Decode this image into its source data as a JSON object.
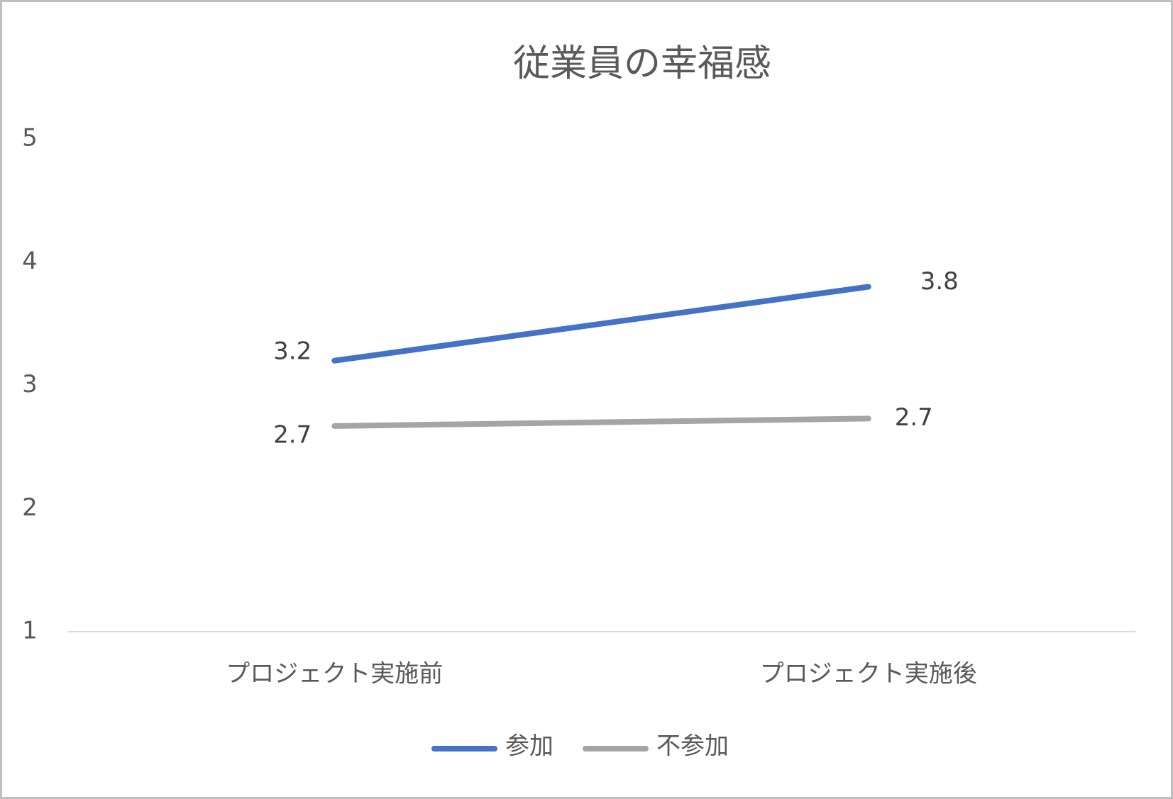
{
  "chart_data": {
    "type": "line",
    "title": "従業員の幸福感",
    "categories": [
      "プロジェクト実施前",
      "プロジェクト実施後"
    ],
    "series": [
      {
        "name": "参加",
        "color": "#4472c4",
        "values": [
          3.2,
          3.8
        ]
      },
      {
        "name": "不参加",
        "color": "#a5a5a5",
        "values": [
          2.67,
          2.73
        ],
        "value_labels": [
          "2.7",
          "2.7"
        ]
      }
    ],
    "ylim": [
      1,
      5
    ],
    "yticks": [
      1,
      2,
      3,
      4,
      5
    ],
    "grid": false,
    "legend": "bottom"
  }
}
